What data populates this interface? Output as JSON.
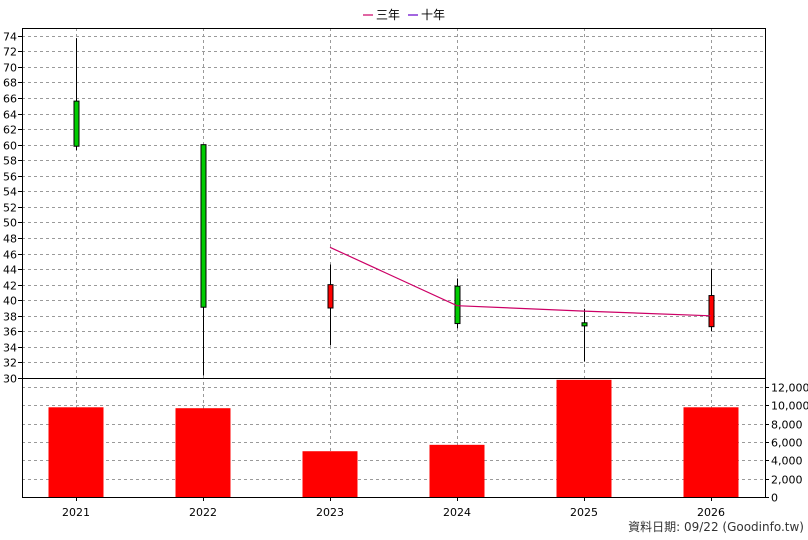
{
  "legend": [
    {
      "label": "三年",
      "color": "#cc0066"
    },
    {
      "label": "十年",
      "color": "#6600cc"
    }
  ],
  "footer": "資料日期: 09/22  (Goodinfo.tw)",
  "chart_data": {
    "type": "candlestick+bar",
    "categories": [
      "2021",
      "2022",
      "2023",
      "2024",
      "2025",
      "2026"
    ],
    "price": {
      "ylim": [
        30,
        75
      ],
      "ticks": [
        30,
        32,
        34,
        36,
        38,
        40,
        42,
        44,
        46,
        48,
        50,
        52,
        54,
        56,
        58,
        60,
        62,
        64,
        66,
        68,
        70,
        72,
        74
      ],
      "candles": [
        {
          "open": 59.8,
          "close": 65.6,
          "high": 73.7,
          "low": 59.3,
          "color": "#00cc00"
        },
        {
          "open": 39.1,
          "close": 60.0,
          "high": 60.0,
          "low": 30.3,
          "color": "#00cc00"
        },
        {
          "open": 42.0,
          "close": 39.0,
          "high": 44.6,
          "low": 34.2,
          "color": "#ff0000"
        },
        {
          "open": 37.0,
          "close": 41.8,
          "high": 42.8,
          "low": 36.4,
          "color": "#00cc00"
        },
        {
          "open": 36.7,
          "close": 37.1,
          "high": 38.9,
          "low": 32.1,
          "color": "#00cc00"
        },
        {
          "open": 40.6,
          "close": 36.6,
          "high": 44.0,
          "low": 36.0,
          "color": "#ff0000"
        }
      ],
      "series": [
        {
          "name": "三年",
          "color": "#cc0066",
          "values": [
            null,
            null,
            46.8,
            39.3,
            38.6,
            38.0
          ]
        }
      ]
    },
    "volume": {
      "ylim": [
        0,
        13000
      ],
      "ticks": [
        0,
        2000,
        4000,
        6000,
        8000,
        10000,
        12000
      ],
      "tick_labels": [
        "0",
        "2,000",
        "4,000",
        "6,000",
        "8,000",
        "10,000",
        "12,000"
      ],
      "values": [
        9800,
        9700,
        5000,
        5700,
        12800,
        9800
      ],
      "color": "#ff0000"
    }
  }
}
